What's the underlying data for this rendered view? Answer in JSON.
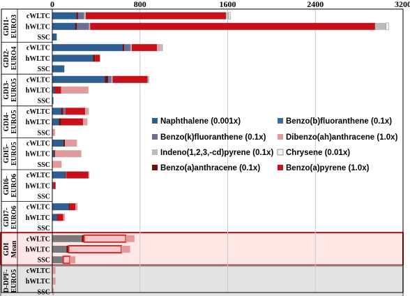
{
  "chart_data": {
    "type": "bar",
    "orientation": "horizontal",
    "stacked": true,
    "x_ticks": [
      "0",
      "800",
      "1600",
      "2400",
      "3200"
    ],
    "xlim": [
      0,
      3200
    ],
    "legend_position": "center-right",
    "series": [
      {
        "name": "Naphthalene (0.001x)",
        "color": "#2E5F93"
      },
      {
        "name": "Benzo(b)fluoranthene (0.1x)",
        "color": "#3A6BA3"
      },
      {
        "name": "Benzo(k)fluoranthene (0.1x)",
        "color": "#6B6F95"
      },
      {
        "name": "Dibenzo(ah)anthracene (1.0x)",
        "color": "#E49A9A"
      },
      {
        "name": "Indeno(1,2,3,-cd)pyrene (0.1x)",
        "color": "#BBBBBB"
      },
      {
        "name": "Chrysene (0.01x)",
        "color": "#F4F4F4"
      },
      {
        "name": "Benzo(a)anthracene (0.1x)",
        "color": "#6B0F0F"
      },
      {
        "name": "Benzo(a)pyrene (1.0x)",
        "color": "#C8101A"
      }
    ],
    "groups": [
      {
        "label": [
          "GDI1-",
          "EURO3"
        ],
        "rows": [
          {
            "cycle": "cWLTC",
            "segments": [
              {
                "s": 0,
                "v": 220
              },
              {
                "s": 6,
                "v": 15
              },
              {
                "s": 2,
                "v": 55
              },
              {
                "s": 4,
                "v": 15
              },
              {
                "s": 7,
                "v": 1280
              },
              {
                "s": 4,
                "v": 25
              },
              {
                "s": 5,
                "v": 15
              }
            ]
          },
          {
            "cycle": "hWLTC",
            "segments": [
              {
                "s": 0,
                "v": 210
              },
              {
                "s": 6,
                "v": 15
              },
              {
                "s": 2,
                "v": 110
              },
              {
                "s": 4,
                "v": 10
              },
              {
                "s": 7,
                "v": 2600
              },
              {
                "s": 4,
                "v": 100
              },
              {
                "s": 5,
                "v": 25
              }
            ]
          },
          {
            "cycle": "SSC",
            "segments": [
              {
                "s": 0,
                "v": 40
              }
            ]
          }
        ]
      },
      {
        "label": [
          "GDI2-",
          "EURO4"
        ],
        "rows": [
          {
            "cycle": "cWLTC",
            "segments": [
              {
                "s": 0,
                "v": 640
              },
              {
                "s": 6,
                "v": 15
              },
              {
                "s": 2,
                "v": 60
              },
              {
                "s": 4,
                "v": 10
              },
              {
                "s": 7,
                "v": 230
              },
              {
                "s": 3,
                "v": 30
              },
              {
                "s": 4,
                "v": 25
              }
            ]
          },
          {
            "cycle": "hWLTC",
            "segments": [
              {
                "s": 0,
                "v": 370
              },
              {
                "s": 6,
                "v": 20
              },
              {
                "s": 7,
                "v": 45
              }
            ]
          },
          {
            "cycle": "SSC",
            "segments": [
              {
                "s": 0,
                "v": 110
              }
            ]
          }
        ]
      },
      {
        "label": [
          "GDI3-",
          "EURO5"
        ],
        "rows": [
          {
            "cycle": "cWLTC",
            "segments": [
              {
                "s": 0,
                "v": 480
              },
              {
                "s": 6,
                "v": 30
              },
              {
                "s": 2,
                "v": 30
              },
              {
                "s": 4,
                "v": 10
              },
              {
                "s": 7,
                "v": 320
              },
              {
                "s": 4,
                "v": 15
              }
            ]
          },
          {
            "cycle": "hWLTC",
            "segments": [
              {
                "s": 0,
                "v": 20
              },
              {
                "s": 6,
                "v": 10
              },
              {
                "s": 7,
                "v": 50
              },
              {
                "s": 3,
                "v": 250
              }
            ]
          },
          {
            "cycle": "SSC",
            "segments": [
              {
                "s": 0,
                "v": 10
              }
            ]
          }
        ]
      },
      {
        "label": [
          "GDI4-",
          "EURO5"
        ],
        "rows": [
          {
            "cycle": "cWLTC",
            "segments": [
              {
                "s": 0,
                "v": 80
              },
              {
                "s": 6,
                "v": 20
              },
              {
                "s": 2,
                "v": 20
              },
              {
                "s": 7,
                "v": 180
              },
              {
                "s": 3,
                "v": 25
              },
              {
                "s": 4,
                "v": 10
              }
            ]
          },
          {
            "cycle": "hWLTC",
            "segments": [
              {
                "s": 0,
                "v": 60
              },
              {
                "s": 6,
                "v": 20
              },
              {
                "s": 7,
                "v": 200
              },
              {
                "s": 3,
                "v": 40
              }
            ]
          },
          {
            "cycle": "SSC",
            "segments": [
              {
                "s": 0,
                "v": 5
              },
              {
                "s": 3,
                "v": 20
              }
            ]
          }
        ]
      },
      {
        "label": [
          "GDI5-",
          "EURO5"
        ],
        "rows": [
          {
            "cycle": "cWLTC",
            "segments": [
              {
                "s": 0,
                "v": 100
              },
              {
                "s": 6,
                "v": 15
              },
              {
                "s": 3,
                "v": 110
              }
            ]
          },
          {
            "cycle": "hWLTC",
            "segments": [
              {
                "s": 0,
                "v": 15
              },
              {
                "s": 6,
                "v": 10
              },
              {
                "s": 3,
                "v": 240
              }
            ]
          },
          {
            "cycle": "SSC",
            "segments": [
              {
                "s": 3,
                "v": 85
              }
            ]
          }
        ]
      },
      {
        "label": [
          "GDI6-",
          "EURO6"
        ],
        "rows": [
          {
            "cycle": "cWLTC",
            "segments": [
              {
                "s": 0,
                "v": 110
              },
              {
                "s": 6,
                "v": 10
              },
              {
                "s": 2,
                "v": 10
              },
              {
                "s": 7,
                "v": 200
              },
              {
                "s": 4,
                "v": 10
              }
            ]
          },
          {
            "cycle": "hWLTC",
            "segments": [
              {
                "s": 0,
                "v": 10
              },
              {
                "s": 7,
                "v": 20
              }
            ]
          },
          {
            "cycle": "SSC",
            "segments": []
          }
        ]
      },
      {
        "label": [
          "GDI7-",
          "EURO6"
        ],
        "rows": [
          {
            "cycle": "cWLTC",
            "segments": [
              {
                "s": 0,
                "v": 150
              },
              {
                "s": 6,
                "v": 10
              },
              {
                "s": 7,
                "v": 50
              },
              {
                "s": 3,
                "v": 20
              }
            ]
          },
          {
            "cycle": "hWLTC",
            "segments": [
              {
                "s": 0,
                "v": 40
              },
              {
                "s": 6,
                "v": 10
              },
              {
                "s": 7,
                "v": 50
              },
              {
                "s": 3,
                "v": 15
              }
            ]
          },
          {
            "cycle": "SSC",
            "segments": []
          }
        ]
      },
      {
        "label": [
          "GDI",
          "Mean"
        ],
        "rows": [
          {
            "cycle": "cWLTC",
            "segments": [
              {
                "s": 2,
                "v": 270
              },
              {
                "s": 6,
                "v": 20
              },
              {
                "s": 7,
                "v": 380
              },
              {
                "s": 3,
                "v": 80
              }
            ]
          },
          {
            "cycle": "hWLTC",
            "segments": [
              {
                "s": 2,
                "v": 130
              },
              {
                "s": 6,
                "v": 20
              },
              {
                "s": 7,
                "v": 480
              },
              {
                "s": 3,
                "v": 80
              }
            ]
          },
          {
            "cycle": "SSC",
            "segments": [
              {
                "s": 2,
                "v": 100
              },
              {
                "s": 7,
                "v": 60
              },
              {
                "s": 3,
                "v": 50
              }
            ]
          }
        ]
      },
      {
        "label": [
          "D-DPF-",
          "EURO5"
        ],
        "rows": [
          {
            "cycle": "cWLTC",
            "segments": [
              {
                "s": 3,
                "v": 30
              }
            ]
          },
          {
            "cycle": "hWLTC",
            "segments": [
              {
                "s": 3,
                "v": 30
              }
            ]
          },
          {
            "cycle": "SSC",
            "segments": [
              {
                "s": 3,
                "v": 15
              }
            ]
          }
        ]
      }
    ]
  }
}
